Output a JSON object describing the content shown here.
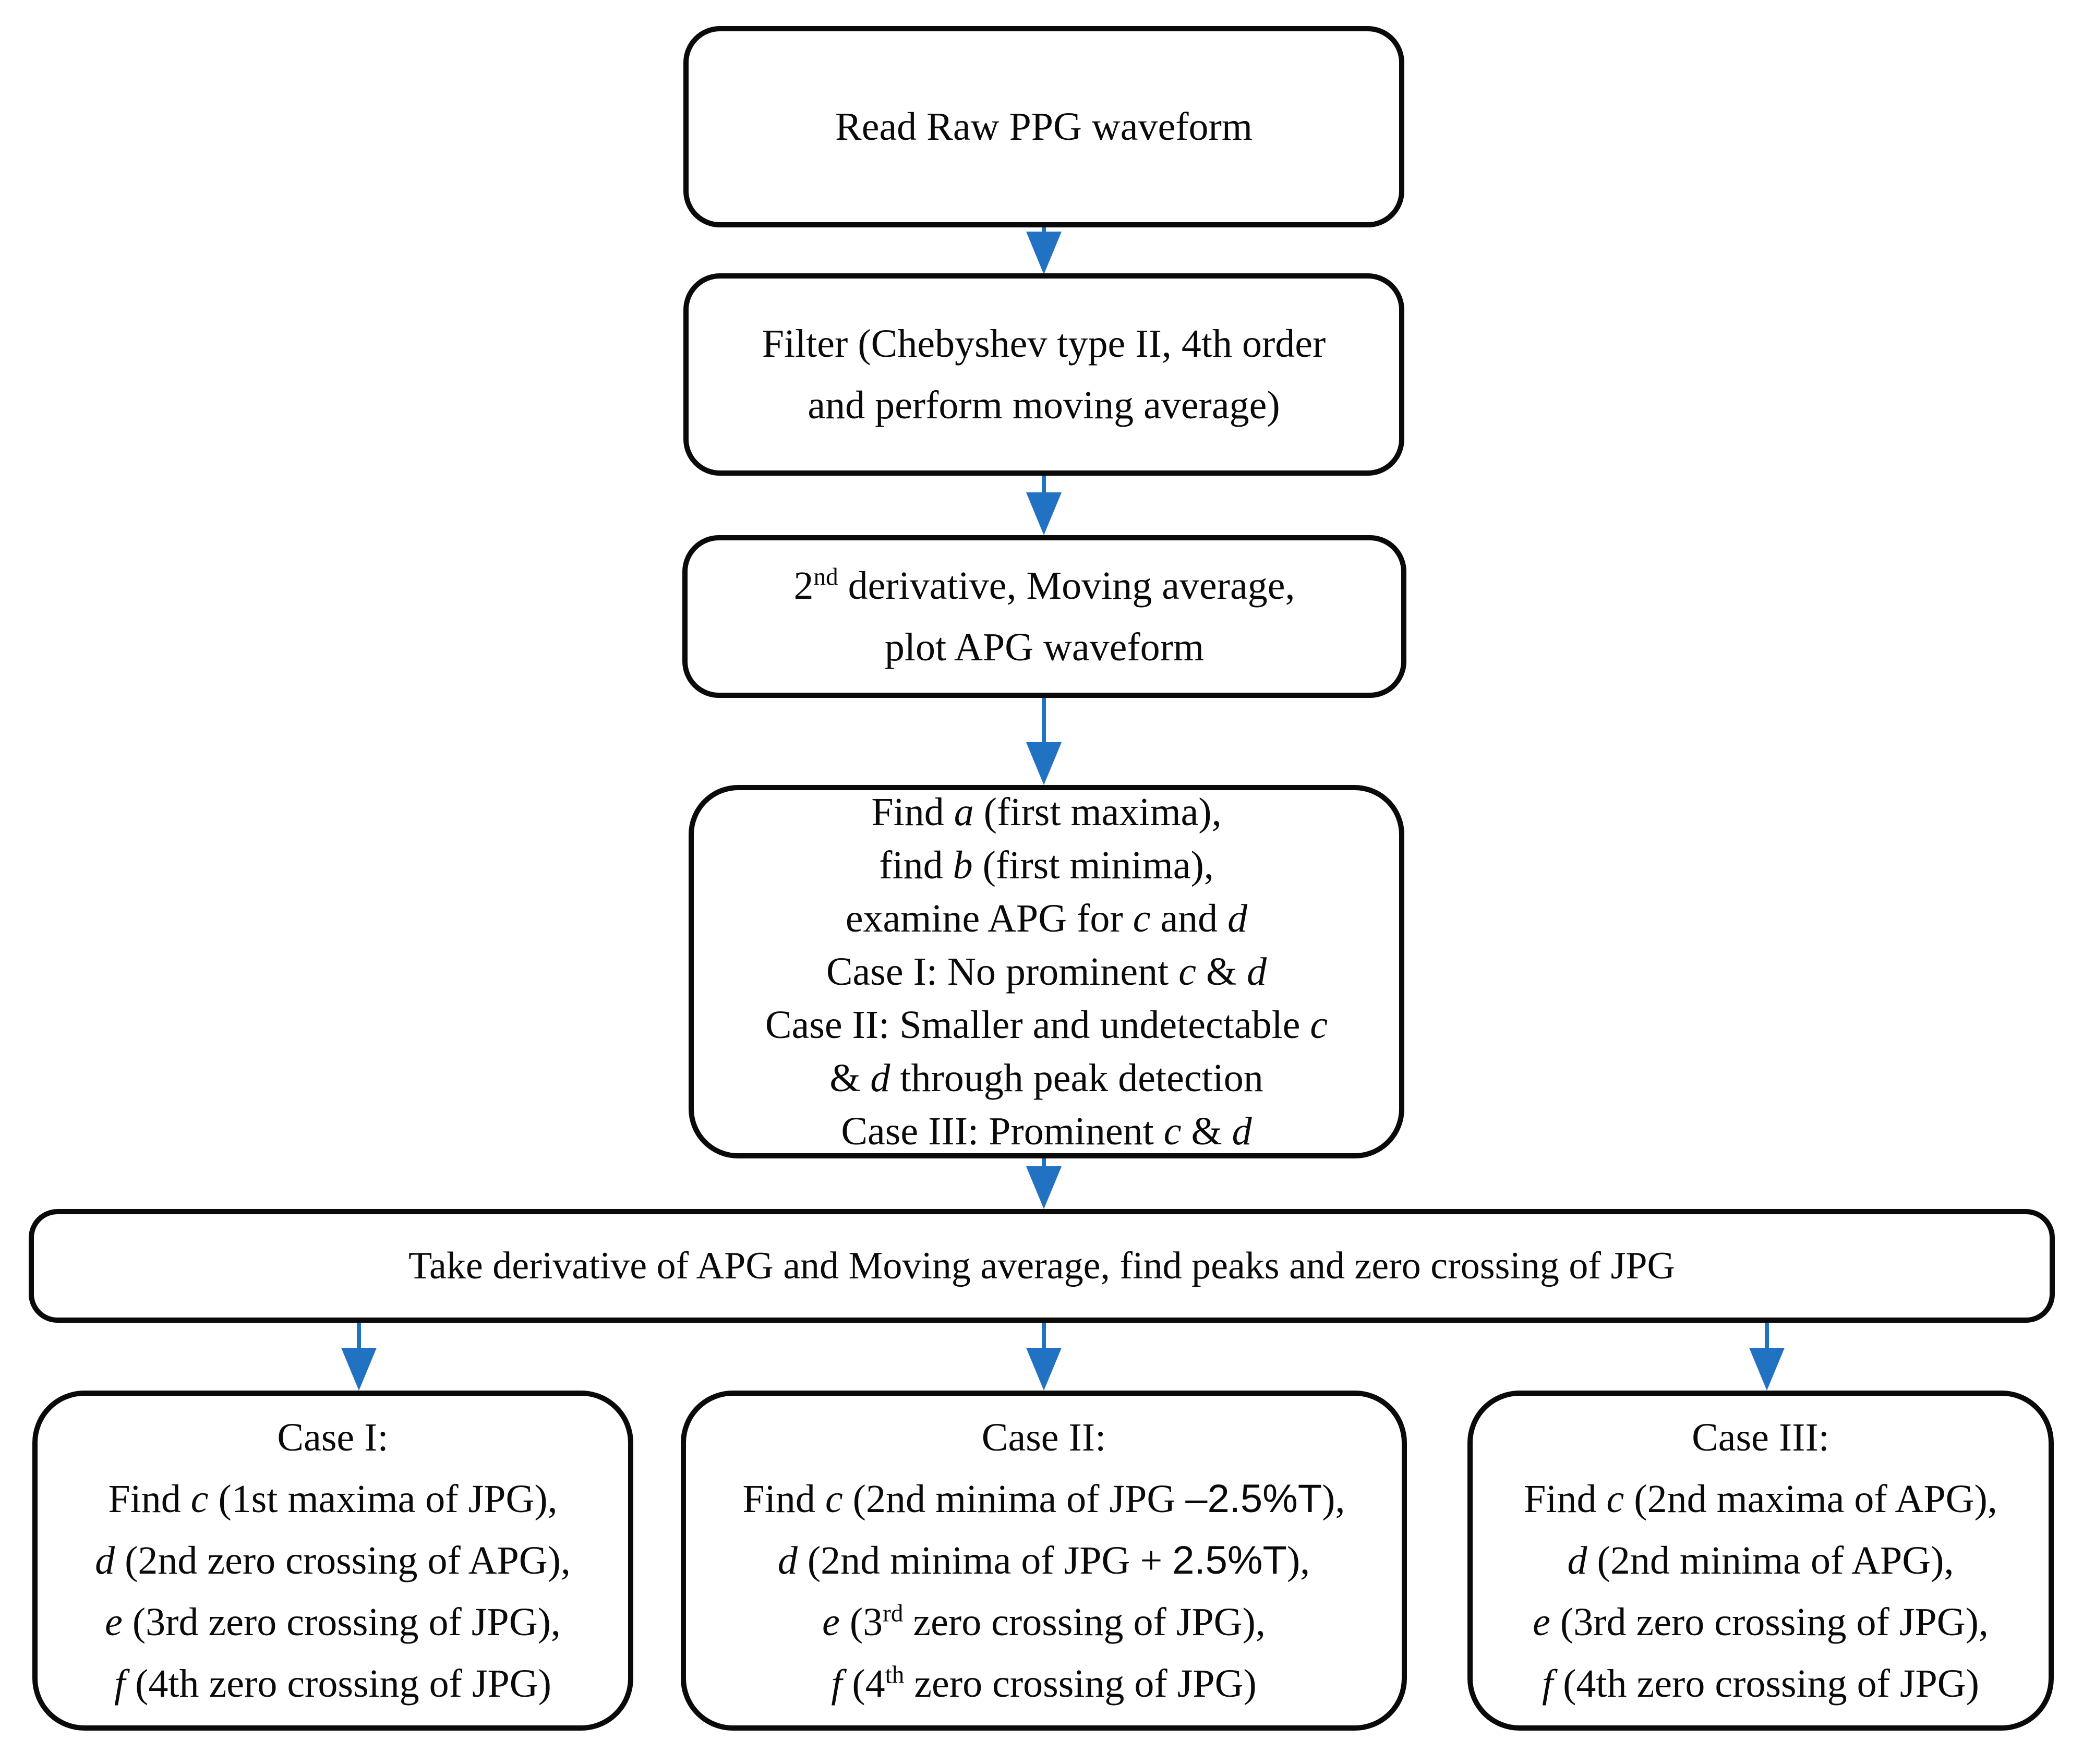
{
  "diagram": {
    "arrow_color": "#2272c4",
    "border_color": "#0a0a0a",
    "nodes": {
      "read": {
        "lines": [
          [
            {
              "t": "Read Raw PPG waveform"
            }
          ]
        ]
      },
      "filter": {
        "lines": [
          [
            {
              "t": "Filter (Chebyshev type II, 4th order"
            }
          ],
          [
            {
              "t": "and perform moving average)"
            }
          ]
        ]
      },
      "derivative": {
        "lines": [
          [
            {
              "t": "2"
            },
            {
              "t": "nd",
              "s": 1
            },
            {
              "t": " derivative, Moving average,"
            }
          ],
          [
            {
              "t": "plot APG waveform"
            }
          ]
        ]
      },
      "find": {
        "lines": [
          [
            {
              "t": "Find "
            },
            {
              "t": "a",
              "i": 1
            },
            {
              "t": " (first maxima),"
            }
          ],
          [
            {
              "t": "find "
            },
            {
              "t": "b",
              "i": 1
            },
            {
              "t": " (first minima),"
            }
          ],
          [
            {
              "t": "examine APG for "
            },
            {
              "t": "c",
              "i": 1
            },
            {
              "t": " and "
            },
            {
              "t": "d",
              "i": 1
            }
          ],
          [
            {
              "t": "Case I: No prominent "
            },
            {
              "t": "c",
              "i": 1
            },
            {
              "t": " & "
            },
            {
              "t": "d",
              "i": 1
            }
          ],
          [
            {
              "t": "Case II: Smaller and undetectable "
            },
            {
              "t": "c",
              "i": 1
            }
          ],
          [
            {
              "t": "& "
            },
            {
              "t": "d",
              "i": 1
            },
            {
              "t": " through peak detection"
            }
          ],
          [
            {
              "t": "Case III: Prominent "
            },
            {
              "t": "c",
              "i": 1
            },
            {
              "t": " & "
            },
            {
              "t": "d",
              "i": 1
            }
          ]
        ]
      },
      "take": {
        "lines": [
          [
            {
              "t": "Take derivative of APG and Moving average, find peaks and zero crossing of JPG"
            }
          ]
        ]
      },
      "case1": {
        "lines": [
          [
            {
              "t": "Case I:"
            }
          ],
          [
            {
              "t": "Find "
            },
            {
              "t": "c",
              "i": 1
            },
            {
              "t": " (1st maxima of JPG),"
            }
          ],
          [
            {
              "t": "d",
              "i": 1
            },
            {
              "t": " (2nd zero crossing of APG),"
            }
          ],
          [
            {
              "t": "e",
              "i": 1
            },
            {
              "t": " (3rd zero crossing of JPG),"
            }
          ],
          [
            {
              "t": "f",
              "i": 1
            },
            {
              "t": " (4th zero crossing of JPG)"
            }
          ]
        ]
      },
      "case2": {
        "lines": [
          [
            {
              "t": "Case II:"
            }
          ],
          [
            {
              "t": "Find "
            },
            {
              "t": "c",
              "i": 1
            },
            {
              "t": " (2nd minima of JPG "
            },
            {
              "t": "–2.5%T",
              "f": 1
            },
            {
              "t": "),"
            }
          ],
          [
            {
              "t": "d",
              "i": 1
            },
            {
              "t": " (2nd minima of JPG + "
            },
            {
              "t": "2.5%T",
              "f": 1
            },
            {
              "t": "),"
            }
          ],
          [
            {
              "t": "e",
              "i": 1
            },
            {
              "t": " (3"
            },
            {
              "t": "rd",
              "s": 1
            },
            {
              "t": " zero crossing of JPG),"
            }
          ],
          [
            {
              "t": "f",
              "i": 1
            },
            {
              "t": " (4"
            },
            {
              "t": "th",
              "s": 1
            },
            {
              "t": " zero crossing of JPG)"
            }
          ]
        ]
      },
      "case3": {
        "lines": [
          [
            {
              "t": "Case III:"
            }
          ],
          [
            {
              "t": "Find "
            },
            {
              "t": "c",
              "i": 1
            },
            {
              "t": " (2nd maxima of APG),"
            }
          ],
          [
            {
              "t": "d",
              "i": 1
            },
            {
              "t": " (2nd minima of APG),"
            }
          ],
          [
            {
              "t": "e",
              "i": 1
            },
            {
              "t": " (3rd zero crossing of JPG),"
            }
          ],
          [
            {
              "t": "f",
              "i": 1
            },
            {
              "t": " (4th zero crossing of JPG)"
            }
          ]
        ]
      }
    }
  }
}
